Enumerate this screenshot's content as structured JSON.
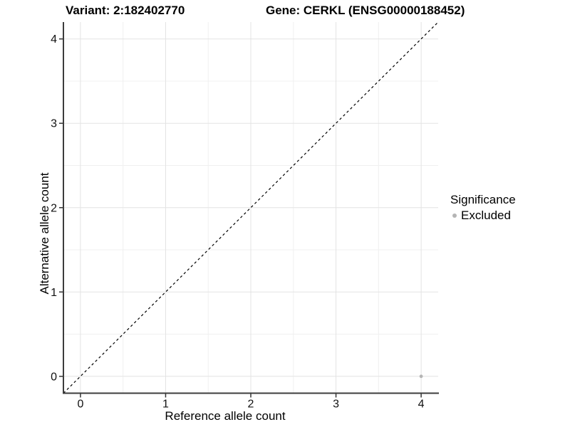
{
  "header": {
    "variant_title": "Variant: 2:182402770",
    "gene_title": "Gene: CERKL (ENSG00000188452)"
  },
  "chart_data": {
    "type": "scatter",
    "xlabel": "Reference allele count",
    "ylabel": "Alternative allele count",
    "xlim": [
      -0.2,
      4.2
    ],
    "ylim": [
      -0.2,
      4.2
    ],
    "x_ticks": [
      0,
      1,
      2,
      3,
      4
    ],
    "y_ticks": [
      0,
      1,
      2,
      3,
      4
    ],
    "x_minor_ticks": [
      0.5,
      1.5,
      2.5,
      3.5
    ],
    "y_minor_ticks": [
      0.5,
      1.5,
      2.5,
      3.5
    ],
    "grid": "major-and-minor",
    "points": [
      {
        "x": 4,
        "y": 0,
        "significance": "Excluded"
      }
    ],
    "identity_line": {
      "equation": "y = x",
      "style": "dashed",
      "color": "#000000"
    },
    "legend": {
      "title": "Significance",
      "position": "right",
      "entries": [
        {
          "label": "Excluded",
          "color": "#b5b5b5"
        }
      ]
    }
  },
  "colors": {
    "background": "#ffffff",
    "grid_major": "#e3e3e3",
    "grid_minor": "#f0f0f0",
    "axis_line": "#3c3c3c",
    "tick_mark": "#333333",
    "tick_label": "#111111",
    "excluded_point": "#b5b5b5"
  }
}
